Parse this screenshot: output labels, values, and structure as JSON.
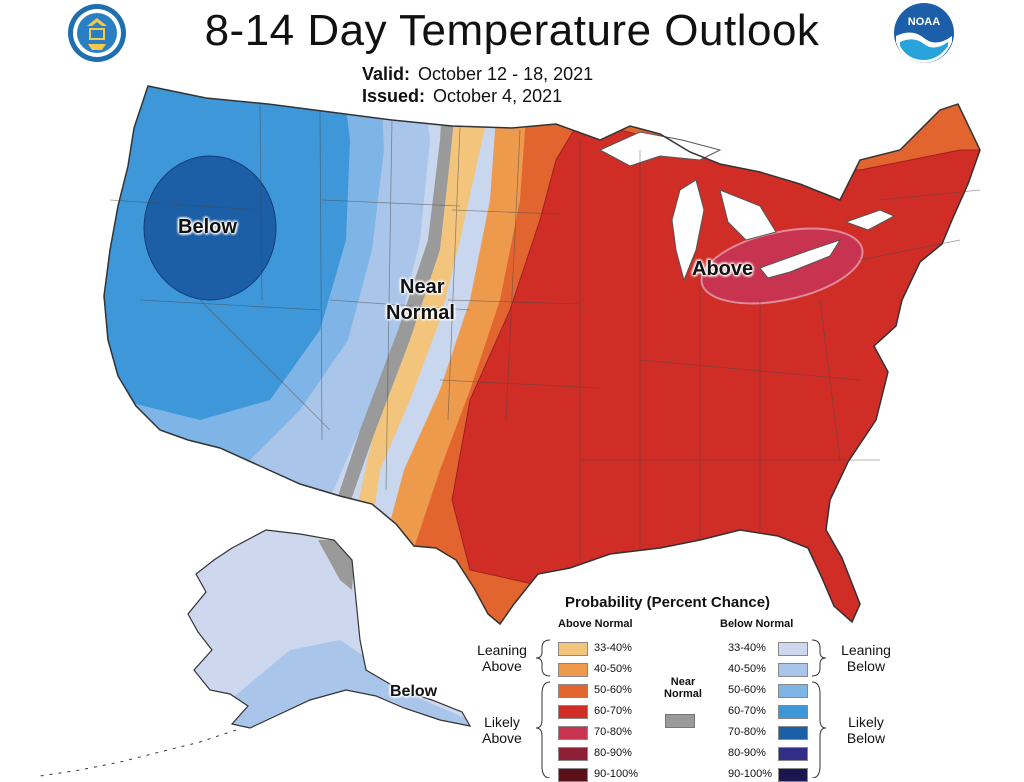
{
  "header": {
    "title": "8-14 Day Temperature Outlook",
    "valid_label": "Valid:",
    "valid_value": "October 12 - 18, 2021",
    "issued_label": "Issued:",
    "issued_value": "October 4, 2021",
    "left_logo": "department-of-commerce-seal",
    "right_logo": "noaa-logo",
    "noaa_text": "NOAA"
  },
  "map_labels": {
    "below_west": "Below",
    "near_normal_line1": "Near",
    "near_normal_line2": "Normal",
    "above_east": "Above",
    "below_alaska": "Below"
  },
  "legend": {
    "title": "Probability (Percent Chance)",
    "above_head": "Above Normal",
    "below_head": "Below Normal",
    "near_line1": "Near",
    "near_line2": "Normal",
    "near_color": "#9a9a9a",
    "leaning_above": [
      "Leaning",
      "Above"
    ],
    "likely_above": [
      "Likely",
      "Above"
    ],
    "leaning_below": [
      "Leaning",
      "Below"
    ],
    "likely_below": [
      "Likely",
      "Below"
    ],
    "ranges": [
      "33-40%",
      "40-50%",
      "50-60%",
      "60-70%",
      "70-80%",
      "80-90%",
      "90-100%"
    ],
    "above_colors": [
      "#f2c47c",
      "#ee9a4c",
      "#e2652f",
      "#cf2d26",
      "#c8344f",
      "#8e2036",
      "#5a1018"
    ],
    "below_colors": [
      "#cdd7ee",
      "#a9c6ea",
      "#7fb5e6",
      "#3d97d9",
      "#1c5fa6",
      "#322e88",
      "#1b1650"
    ]
  }
}
